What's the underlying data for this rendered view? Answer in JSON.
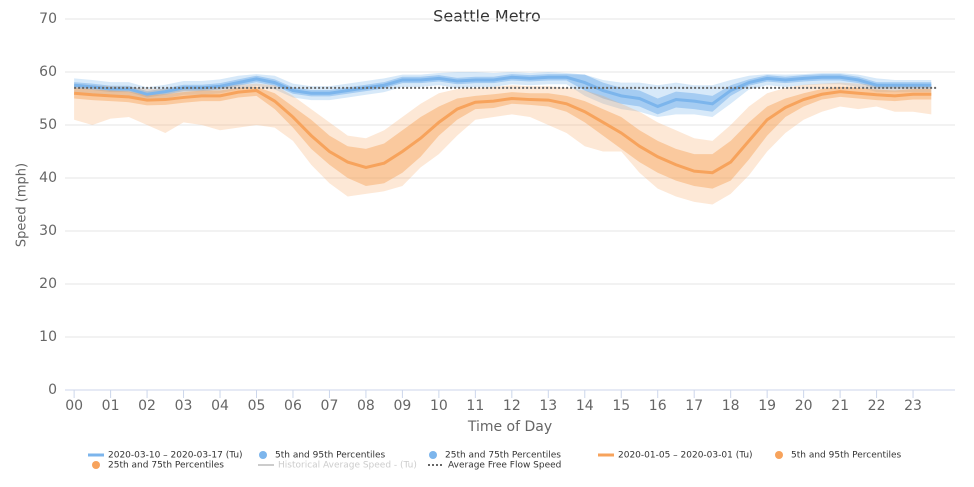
{
  "chart_data": {
    "type": "line",
    "title": "Seattle Metro",
    "y_label": "Speed (mph)",
    "x_label": "Time of Day",
    "x": [
      0,
      0.5,
      1,
      1.5,
      2,
      2.5,
      3,
      3.5,
      4,
      4.5,
      5,
      5.5,
      6,
      6.5,
      7,
      7.5,
      8,
      8.5,
      9,
      9.5,
      10,
      10.5,
      11,
      11.5,
      12,
      12.5,
      13,
      13.5,
      14,
      14.5,
      15,
      15.5,
      16,
      16.5,
      17,
      17.5,
      18,
      18.5,
      19,
      19.5,
      20,
      20.5,
      21,
      21.5,
      22,
      22.5,
      23,
      23.5
    ],
    "xlim": [
      -0.25,
      24.15
    ],
    "xticks": [
      {
        "value": 0,
        "label": "00"
      },
      {
        "value": 1,
        "label": "01"
      },
      {
        "value": 2,
        "label": "02"
      },
      {
        "value": 3,
        "label": "03"
      },
      {
        "value": 4,
        "label": "04"
      },
      {
        "value": 5,
        "label": "05"
      },
      {
        "value": 6,
        "label": "06"
      },
      {
        "value": 7,
        "label": "07"
      },
      {
        "value": 8,
        "label": "08"
      },
      {
        "value": 9,
        "label": "09"
      },
      10,
      11,
      12,
      13,
      14,
      15,
      16,
      17,
      18,
      19,
      20,
      21,
      22,
      23
    ],
    "ylim": [
      0,
      70
    ],
    "yticks": [
      0,
      10,
      20,
      30,
      40,
      50,
      60,
      70
    ],
    "grid": true,
    "series": [
      {
        "name": "2020-03-10 – 2020-03-17 (Tu)",
        "kind": "line",
        "color": "#7cb5ec",
        "values": [
          57.5,
          57.2,
          56.8,
          56.8,
          55.8,
          56.3,
          57,
          57,
          57.3,
          58,
          58.7,
          58,
          56.5,
          56,
          56,
          56.5,
          57,
          57.5,
          58.5,
          58.5,
          58.8,
          58.3,
          58.5,
          58.5,
          59,
          58.8,
          59,
          59,
          58,
          56.5,
          55.5,
          55,
          53.5,
          54.8,
          54.5,
          54,
          56.5,
          58,
          58.8,
          58.5,
          58.8,
          59,
          59,
          58.5,
          57.5,
          57.5,
          57.5,
          57.5
        ]
      },
      {
        "name": "5th and 95th Percentiles",
        "kind": "band",
        "color": "#7cb5ec",
        "opacity": 0.3,
        "low": [
          56.2,
          55.9,
          55.5,
          55.5,
          54.5,
          55,
          55.7,
          55.7,
          56,
          56.7,
          57.4,
          56.7,
          55.2,
          54.7,
          54.7,
          55.2,
          55.7,
          56.2,
          57.2,
          57.2,
          57.5,
          57,
          57.2,
          57.2,
          57.7,
          57.5,
          57.7,
          57.7,
          55.5,
          54,
          53,
          52.5,
          51.5,
          52,
          52,
          51.5,
          54,
          56.7,
          57.5,
          57.2,
          57.5,
          57.7,
          57.7,
          57.2,
          56.2,
          56.2,
          56.2,
          56.2
        ],
        "high": [
          58.8,
          58.5,
          58.1,
          58.1,
          57.1,
          57.6,
          58.3,
          58.3,
          58.6,
          59.3,
          59.6,
          59.3,
          57.8,
          57.3,
          57.3,
          57.8,
          58.3,
          58.8,
          59.5,
          59.5,
          59.8,
          60,
          60,
          59.8,
          60,
          59.8,
          60,
          59.8,
          59.5,
          58.5,
          58,
          58,
          57.5,
          58,
          57.5,
          57.5,
          58.5,
          59.3,
          59.6,
          59.5,
          59.6,
          59.8,
          59.8,
          59.5,
          58.8,
          58.5,
          58.5,
          58.5
        ]
      },
      {
        "name": "25th and 75th Percentiles",
        "kind": "band",
        "color": "#7cb5ec",
        "opacity": 0.55,
        "low": [
          56.9,
          56.6,
          56.2,
          56.2,
          55.2,
          55.7,
          56.4,
          56.4,
          56.7,
          57.4,
          58.1,
          57.4,
          55.9,
          55.4,
          55.4,
          55.9,
          56.4,
          56.9,
          57.9,
          57.9,
          58.2,
          57.7,
          57.9,
          57.9,
          58.4,
          58.2,
          58.4,
          58.4,
          56.5,
          55,
          54,
          53.5,
          52,
          53.3,
          53,
          52.5,
          55.5,
          57.4,
          58.2,
          57.9,
          58.2,
          58.4,
          58.4,
          57.9,
          56.9,
          56.9,
          56.9,
          56.9
        ],
        "high": [
          58.1,
          57.8,
          57.4,
          57.4,
          56.4,
          56.9,
          57.6,
          57.6,
          57.9,
          58.6,
          59.3,
          58.6,
          57.1,
          56.6,
          56.6,
          57.1,
          57.6,
          58.1,
          59.1,
          59.1,
          59.4,
          58.9,
          59.1,
          59.1,
          59.6,
          59.4,
          59.6,
          59.6,
          59.5,
          58,
          57,
          56.5,
          55,
          56.3,
          56,
          55.5,
          57.5,
          58.6,
          59.4,
          59.1,
          59.4,
          59.6,
          59.6,
          59.1,
          58.1,
          58.1,
          58.1,
          58.1
        ]
      },
      {
        "name": "2020-01-05 – 2020-03-01 (Tu)",
        "kind": "line",
        "color": "#f7a35c",
        "values": [
          56,
          55.7,
          55.5,
          55.3,
          54.7,
          54.8,
          55.2,
          55.5,
          55.5,
          56.2,
          56.5,
          54.5,
          51.5,
          48,
          45,
          43,
          42,
          42.8,
          45,
          47.5,
          50.5,
          53,
          54.3,
          54.5,
          55,
          54.8,
          54.7,
          54,
          52.5,
          50.5,
          48.5,
          46,
          44,
          42.5,
          41.3,
          41,
          43,
          47,
          51,
          53.3,
          54.8,
          55.8,
          56.3,
          56,
          55.7,
          55.5,
          55.8,
          55.8
        ]
      },
      {
        "name": "5th and 95th Percentiles",
        "kind": "band",
        "color": "#f7a35c",
        "opacity": 0.25,
        "low": [
          51,
          50,
          51.2,
          51.5,
          50,
          48.5,
          50.5,
          50,
          49,
          49.5,
          50,
          49.5,
          47,
          42.5,
          39,
          36.5,
          37,
          37.5,
          38.5,
          42,
          44.5,
          48,
          51,
          51.5,
          52,
          51.5,
          50,
          48.5,
          46,
          45,
          45,
          41,
          38,
          36.5,
          35.5,
          35,
          37,
          40.5,
          45,
          48.5,
          51,
          52.5,
          53.5,
          53,
          53.5,
          52.5,
          52.5,
          52
        ],
        "high": [
          57.8,
          57.5,
          57.3,
          57.2,
          56.8,
          56.8,
          57,
          57.2,
          57.3,
          57.6,
          57.8,
          57.5,
          55.5,
          53,
          50.5,
          48,
          47.5,
          49,
          51.5,
          54,
          56,
          56.8,
          57,
          57.2,
          57.5,
          57.3,
          57.3,
          57,
          56.5,
          55.5,
          54,
          52.5,
          50.5,
          49,
          47.5,
          47,
          50,
          53.5,
          56,
          57,
          57.6,
          57.8,
          58,
          57.8,
          57.6,
          57.5,
          57.6,
          57.6
        ]
      },
      {
        "name": "25th and 75th Percentiles",
        "kind": "band",
        "color": "#f7a35c",
        "opacity": 0.45,
        "low": [
          55,
          54.7,
          54.5,
          54.3,
          53.7,
          53.8,
          54.2,
          54.5,
          54.5,
          55.2,
          55.5,
          53,
          49.5,
          45.5,
          42.5,
          40,
          38.5,
          39,
          41,
          44,
          48,
          51,
          53,
          53.2,
          54,
          53.8,
          53.5,
          52.5,
          50.5,
          48,
          45.5,
          43,
          41,
          39.5,
          38.5,
          38,
          39.5,
          43.5,
          48,
          51.5,
          53.5,
          54.8,
          55.3,
          55,
          54.7,
          54.5,
          54.8,
          54.8
        ],
        "high": [
          57,
          56.7,
          56.5,
          56.3,
          55.7,
          55.8,
          56.2,
          56.5,
          56.5,
          57,
          57.2,
          56,
          53.5,
          51,
          48,
          46,
          45.5,
          46.5,
          49,
          51.5,
          53.5,
          55,
          55.5,
          55.8,
          56.2,
          56,
          56,
          55.5,
          54.5,
          53,
          51.5,
          49,
          47,
          45.5,
          44.5,
          44.5,
          47,
          50.5,
          53.5,
          55,
          56,
          56.8,
          57.2,
          57,
          56.7,
          56.5,
          56.8,
          56.8
        ]
      },
      {
        "name": "Historical Average Speed - (Tu)",
        "kind": "hidden",
        "color": "#cccccc"
      },
      {
        "name": "Average Free Flow Speed",
        "kind": "reference",
        "color": "#666666",
        "value": 57
      }
    ]
  }
}
